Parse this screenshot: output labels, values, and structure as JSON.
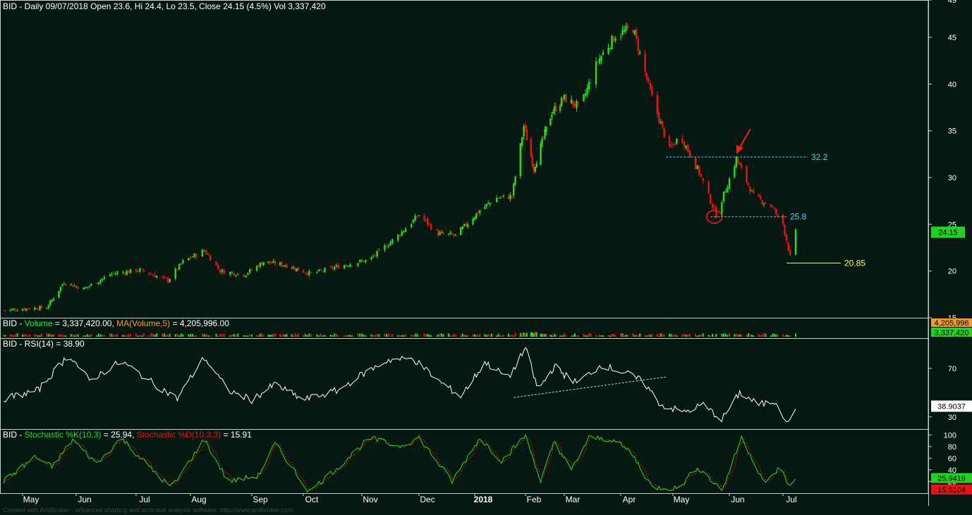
{
  "colors": {
    "background": "#061812",
    "up_candle": "#22dd22",
    "down_candle": "#ee1111",
    "axis_text": "#ffffff",
    "volume_label": "#22ee22",
    "volume_ma_label": "#ff9a30",
    "rsi_line": "#ffffff",
    "stoch_k": "#22dd22",
    "stoch_d": "#ee1111",
    "level_cyan": "#3fd8e8",
    "level_yellow": "#ffff33",
    "arrow": "#ff1a1a"
  },
  "chart_data": [
    {
      "type": "candlestick",
      "title": "BID - Daily 09/07/2018 Open 23.6, Hi 24.4, Lo 23.5, Close 24.15 (4.5%) Vol 3,337,420",
      "y_axis_ticks": [
        15,
        20,
        25,
        30,
        35,
        40,
        45,
        49
      ],
      "ylim": [
        15,
        49
      ],
      "last_price_label": "24.15",
      "levels": [
        {
          "label": "32.2",
          "value": 32.2,
          "color": "#3fd8e8",
          "style": "dashed"
        },
        {
          "label": "25.8",
          "value": 25.8,
          "color": "#3fd8e8",
          "style": "dashed"
        },
        {
          "label": "20.85",
          "value": 20.85,
          "color": "#ffff33",
          "style": "solid"
        }
      ],
      "annotations": [
        "red arrow pointing at the 32.2 retest in early June",
        "red circle around the May low near 25.8"
      ],
      "close_waypoints": [
        {
          "x": "2017-04-20",
          "y": 15.8
        },
        {
          "x": "2017-05-05",
          "y": 16.0
        },
        {
          "x": "2017-05-15",
          "y": 16.1
        },
        {
          "x": "2017-05-25",
          "y": 18.8
        },
        {
          "x": "2017-06-05",
          "y": 18.1
        },
        {
          "x": "2017-06-20",
          "y": 19.7
        },
        {
          "x": "2017-07-05",
          "y": 20.1
        },
        {
          "x": "2017-07-20",
          "y": 19.0
        },
        {
          "x": "2017-07-28",
          "y": 21.0
        },
        {
          "x": "2017-08-08",
          "y": 22.2
        },
        {
          "x": "2017-08-16",
          "y": 20.0
        },
        {
          "x": "2017-08-28",
          "y": 19.6
        },
        {
          "x": "2017-09-08",
          "y": 21.0
        },
        {
          "x": "2017-09-22",
          "y": 20.6
        },
        {
          "x": "2017-10-06",
          "y": 19.7
        },
        {
          "x": "2017-10-20",
          "y": 20.5
        },
        {
          "x": "2017-11-05",
          "y": 21.2
        },
        {
          "x": "2017-11-20",
          "y": 23.8
        },
        {
          "x": "2017-12-01",
          "y": 26.0
        },
        {
          "x": "2017-12-12",
          "y": 24.0
        },
        {
          "x": "2017-12-22",
          "y": 23.8
        },
        {
          "x": "2018-01-05",
          "y": 26.5
        },
        {
          "x": "2018-01-15",
          "y": 27.8
        },
        {
          "x": "2018-01-24",
          "y": 28.0
        },
        {
          "x": "2018-01-31",
          "y": 35.5
        },
        {
          "x": "2018-02-07",
          "y": 31.0
        },
        {
          "x": "2018-02-20",
          "y": 37.0
        },
        {
          "x": "2018-03-01",
          "y": 38.5
        },
        {
          "x": "2018-03-10",
          "y": 37.5
        },
        {
          "x": "2018-03-20",
          "y": 42.5
        },
        {
          "x": "2018-03-30",
          "y": 45.2
        },
        {
          "x": "2018-04-09",
          "y": 46.0
        },
        {
          "x": "2018-04-20",
          "y": 38.5
        },
        {
          "x": "2018-04-30",
          "y": 33.0
        },
        {
          "x": "2018-05-06",
          "y": 34.5
        },
        {
          "x": "2018-05-16",
          "y": 30.5
        },
        {
          "x": "2018-05-25",
          "y": 26.0
        },
        {
          "x": "2018-06-05",
          "y": 32.0
        },
        {
          "x": "2018-06-15",
          "y": 28.0
        },
        {
          "x": "2018-06-25",
          "y": 27.0
        },
        {
          "x": "2018-07-02",
          "y": 25.0
        },
        {
          "x": "2018-07-06",
          "y": 21.5
        },
        {
          "x": "2018-07-09",
          "y": 24.15
        }
      ]
    },
    {
      "type": "bar",
      "title": "BID - Volume = 3,337,420.00, MA(Volume,5) = 4,205,996.00",
      "label_prefix": "BID - ",
      "label_volume": "Volume",
      "label_volume_value": " = 3,337,420.00, ",
      "label_ma": "MA(Volume,5)",
      "label_ma_value": " = 4,205,996.00",
      "right_labels": [
        "4,205,996",
        "3,337,420"
      ]
    },
    {
      "type": "line",
      "title": "BID - RSI(14) = 38.90",
      "y_axis_ticks": [
        30,
        70
      ],
      "ylim": [
        20,
        95
      ],
      "last_value_label": "38.9037",
      "trendline": {
        "from": {
          "x": "2018-01-25",
          "y": 46
        },
        "to": {
          "x": "2018-04-20",
          "y": 63
        }
      },
      "waypoints": [
        {
          "x": "2017-04-20",
          "y": 45
        },
        {
          "x": "2017-05-10",
          "y": 52
        },
        {
          "x": "2017-05-28",
          "y": 82
        },
        {
          "x": "2017-06-08",
          "y": 60
        },
        {
          "x": "2017-06-25",
          "y": 76
        },
        {
          "x": "2017-07-12",
          "y": 58
        },
        {
          "x": "2017-07-25",
          "y": 45
        },
        {
          "x": "2017-08-08",
          "y": 79
        },
        {
          "x": "2017-08-20",
          "y": 52
        },
        {
          "x": "2017-09-01",
          "y": 44
        },
        {
          "x": "2017-09-15",
          "y": 57
        },
        {
          "x": "2017-10-02",
          "y": 44
        },
        {
          "x": "2017-10-20",
          "y": 52
        },
        {
          "x": "2017-11-01",
          "y": 65
        },
        {
          "x": "2017-11-15",
          "y": 77
        },
        {
          "x": "2017-11-28",
          "y": 78
        },
        {
          "x": "2017-12-12",
          "y": 60
        },
        {
          "x": "2017-12-25",
          "y": 47
        },
        {
          "x": "2018-01-08",
          "y": 75
        },
        {
          "x": "2018-01-22",
          "y": 62
        },
        {
          "x": "2018-02-01",
          "y": 87
        },
        {
          "x": "2018-02-10",
          "y": 52
        },
        {
          "x": "2018-02-22",
          "y": 72
        },
        {
          "x": "2018-03-08",
          "y": 58
        },
        {
          "x": "2018-03-22",
          "y": 73
        },
        {
          "x": "2018-04-05",
          "y": 66
        },
        {
          "x": "2018-04-15",
          "y": 59
        },
        {
          "x": "2018-04-25",
          "y": 40
        },
        {
          "x": "2018-05-08",
          "y": 34
        },
        {
          "x": "2018-05-18",
          "y": 40
        },
        {
          "x": "2018-05-28",
          "y": 28
        },
        {
          "x": "2018-06-07",
          "y": 50
        },
        {
          "x": "2018-06-18",
          "y": 40
        },
        {
          "x": "2018-06-28",
          "y": 43
        },
        {
          "x": "2018-07-05",
          "y": 24
        },
        {
          "x": "2018-07-09",
          "y": 38.9
        }
      ]
    },
    {
      "type": "line",
      "title": "BID - Stochastic %K(10,3) = 25.94, Stochastic %D(10,3,3) = 15.91",
      "label_prefix": "BID - ",
      "label_k": "Stochastic %K(10,3)",
      "label_k_value": " = 25.94, ",
      "label_d": "Stochastic %D(10,3,3)",
      "label_d_value": " = 15.91",
      "y_axis_ticks": [
        20,
        40,
        60,
        80,
        100
      ],
      "ylim": [
        0,
        110
      ],
      "k_last_label": "25.9419",
      "d_last_label": "15.9104",
      "k_waypoints": [
        {
          "x": "2017-04-20",
          "y": 20
        },
        {
          "x": "2017-05-08",
          "y": 62
        },
        {
          "x": "2017-05-18",
          "y": 45
        },
        {
          "x": "2017-05-30",
          "y": 92
        },
        {
          "x": "2017-06-12",
          "y": 50
        },
        {
          "x": "2017-06-25",
          "y": 95
        },
        {
          "x": "2017-07-10",
          "y": 45
        },
        {
          "x": "2017-07-22",
          "y": 8
        },
        {
          "x": "2017-08-08",
          "y": 92
        },
        {
          "x": "2017-08-20",
          "y": 20
        },
        {
          "x": "2017-09-05",
          "y": 30
        },
        {
          "x": "2017-09-15",
          "y": 85
        },
        {
          "x": "2017-09-25",
          "y": 45
        },
        {
          "x": "2017-10-05",
          "y": 3
        },
        {
          "x": "2017-10-20",
          "y": 45
        },
        {
          "x": "2017-11-05",
          "y": 95
        },
        {
          "x": "2017-11-20",
          "y": 80
        },
        {
          "x": "2017-12-01",
          "y": 95
        },
        {
          "x": "2017-12-20",
          "y": 20
        },
        {
          "x": "2018-01-05",
          "y": 95
        },
        {
          "x": "2018-01-18",
          "y": 55
        },
        {
          "x": "2018-02-01",
          "y": 100
        },
        {
          "x": "2018-02-12",
          "y": 20
        },
        {
          "x": "2018-02-22",
          "y": 90
        },
        {
          "x": "2018-03-05",
          "y": 40
        },
        {
          "x": "2018-03-15",
          "y": 95
        },
        {
          "x": "2018-03-28",
          "y": 92
        },
        {
          "x": "2018-04-08",
          "y": 70
        },
        {
          "x": "2018-04-20",
          "y": 10
        },
        {
          "x": "2018-05-05",
          "y": 8
        },
        {
          "x": "2018-05-15",
          "y": 45
        },
        {
          "x": "2018-05-28",
          "y": 5
        },
        {
          "x": "2018-06-08",
          "y": 95
        },
        {
          "x": "2018-06-22",
          "y": 15
        },
        {
          "x": "2018-06-30",
          "y": 45
        },
        {
          "x": "2018-07-06",
          "y": 10
        },
        {
          "x": "2018-07-09",
          "y": 25.94
        }
      ]
    }
  ],
  "x_axis": {
    "ticks": [
      {
        "label": "May",
        "date": "2017-05-01",
        "bold": false
      },
      {
        "label": "Jun",
        "date": "2017-06-01",
        "bold": false
      },
      {
        "label": "Jul",
        "date": "2017-07-03",
        "bold": false
      },
      {
        "label": "Aug",
        "date": "2017-08-01",
        "bold": false
      },
      {
        "label": "Sep",
        "date": "2017-09-01",
        "bold": false
      },
      {
        "label": "Oct",
        "date": "2017-10-02",
        "bold": false
      },
      {
        "label": "Nov",
        "date": "2017-11-01",
        "bold": false
      },
      {
        "label": "Dec",
        "date": "2017-12-01",
        "bold": false
      },
      {
        "label": "2018",
        "date": "2018-01-02",
        "bold": true
      },
      {
        "label": "Feb",
        "date": "2018-02-01",
        "bold": false
      },
      {
        "label": "Mar",
        "date": "2018-03-01",
        "bold": false
      },
      {
        "label": "Apr",
        "date": "2018-04-02",
        "bold": false
      },
      {
        "label": "May",
        "date": "2018-05-02",
        "bold": false
      },
      {
        "label": "Jun",
        "date": "2018-06-01",
        "bold": false
      },
      {
        "label": "Jul",
        "date": "2018-07-02",
        "bold": false
      }
    ]
  },
  "footer_text": "Created with AmiBroker - advanced charting and technical analysis software. http://www.amibroker.com"
}
